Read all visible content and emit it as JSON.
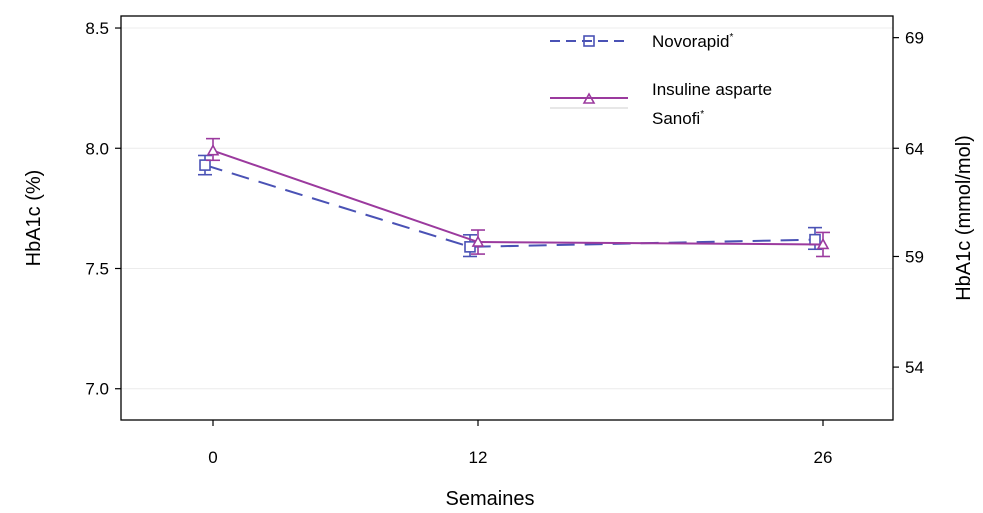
{
  "chart_data": {
    "type": "line",
    "xlabel": "Semaines",
    "ylabel": "HbA1c (%)",
    "ylabel_right": "HbA1c (mmol/mol)",
    "categories": [
      "0",
      "12",
      "26"
    ],
    "ylim": [
      6.87,
      8.55
    ],
    "yticks": [
      "7.0",
      "7.5",
      "8.0",
      "8.5"
    ],
    "yticks_right": [
      "54",
      "59",
      "64",
      "69"
    ],
    "yticks_right_at": [
      7.09,
      7.55,
      8.0,
      8.46
    ],
    "grid": true,
    "legend_position": "top-right",
    "colors": {
      "novorapid": "#4a52b5",
      "sanofi": "#9b3a9e"
    },
    "series": [
      {
        "name": "Novorapid",
        "marker": "square",
        "line_style": "dashed",
        "values": [
          7.93,
          7.59,
          7.62
        ],
        "err_low": [
          7.89,
          7.55,
          7.58
        ],
        "err_high": [
          7.97,
          7.64,
          7.67
        ]
      },
      {
        "name": "Insuline asparte Sanofi",
        "marker": "triangle",
        "line_style": "solid",
        "values": [
          7.99,
          7.61,
          7.6
        ],
        "err_low": [
          7.95,
          7.56,
          7.55
        ],
        "err_high": [
          8.04,
          7.66,
          7.65
        ]
      }
    ],
    "legend": {
      "novorapid_label": "Novorapid",
      "novorapid_sup": "*",
      "sanofi_label_line1": "Insuline asparte",
      "sanofi_label_line2": "Sanofi",
      "sanofi_sup": "*"
    }
  }
}
